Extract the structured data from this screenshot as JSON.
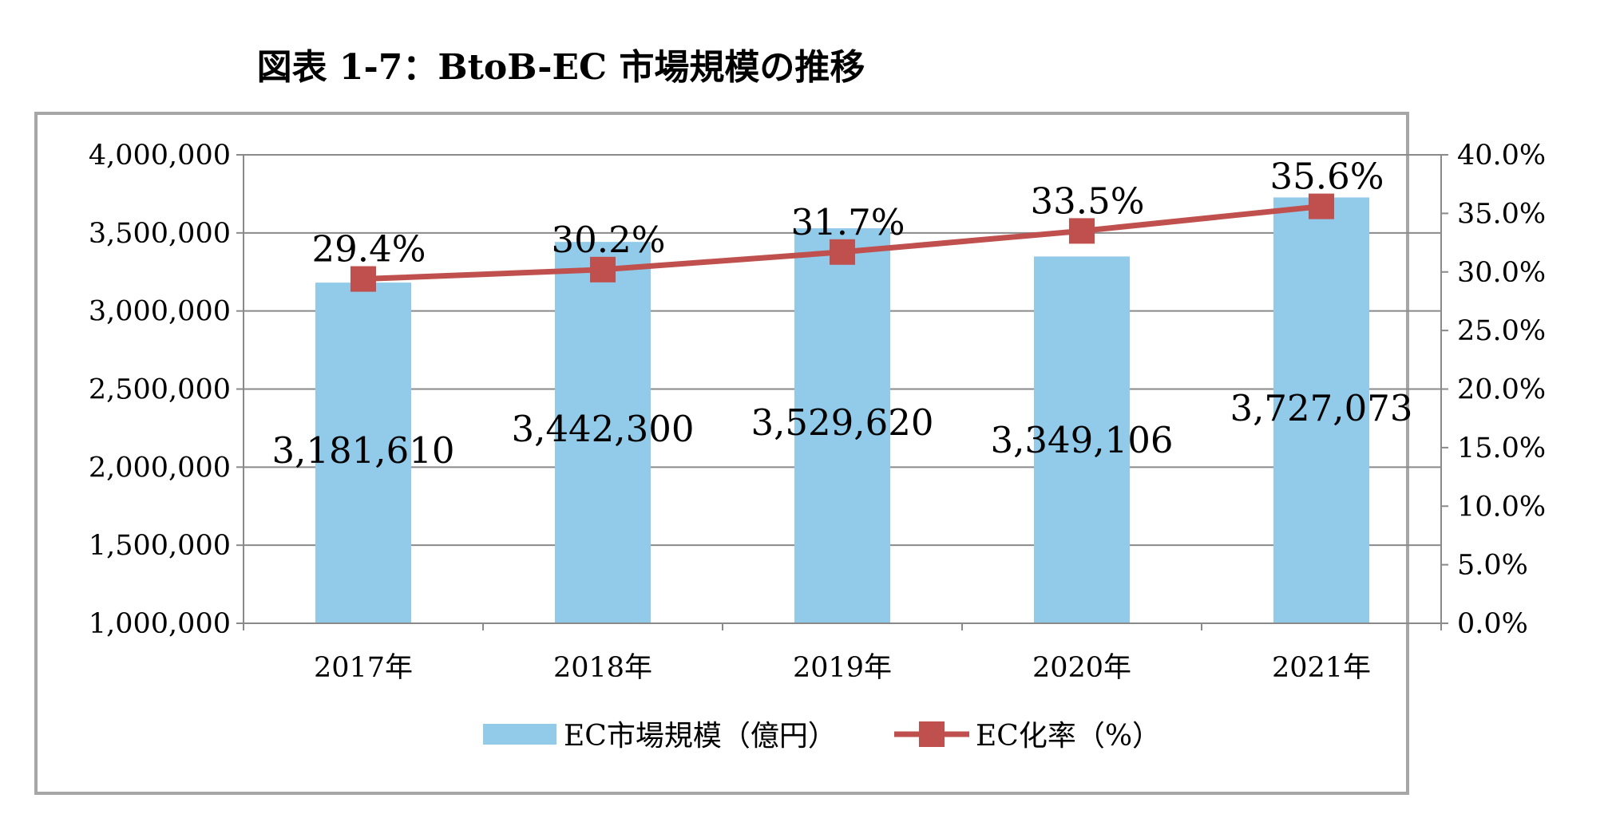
{
  "title": "図表 1-7：BtoB-EC 市場規模の推移",
  "chart_data": {
    "type": "bar",
    "categories": [
      "2017年",
      "2018年",
      "2019年",
      "2020年",
      "2021年"
    ],
    "series": [
      {
        "name": "EC市場規模（億円）",
        "type": "bar",
        "axis": "left",
        "values": [
          3181610,
          3442300,
          3529620,
          3349106,
          3727073
        ],
        "labels": [
          "3,181,610",
          "3,442,300",
          "3,529,620",
          "3,349,106",
          "3,727,073"
        ]
      },
      {
        "name": "EC化率（%）",
        "type": "line",
        "axis": "right",
        "values": [
          29.4,
          30.2,
          31.7,
          33.5,
          35.6
        ],
        "labels": [
          "29.4%",
          "30.2%",
          "31.7%",
          "33.5%",
          "35.6%"
        ]
      }
    ],
    "y_left": {
      "min": 1000000,
      "max": 4000000,
      "step": 500000,
      "ticks": [
        "1,000,000",
        "1,500,000",
        "2,000,000",
        "2,500,000",
        "3,000,000",
        "3,500,000",
        "4,000,000"
      ]
    },
    "y_right": {
      "min": 0,
      "max": 40,
      "step": 5,
      "ticks": [
        "0.0%",
        "5.0%",
        "10.0%",
        "15.0%",
        "20.0%",
        "25.0%",
        "30.0%",
        "35.0%",
        "40.0%"
      ]
    },
    "grid": "horizontal",
    "legend_position": "bottom",
    "colors": {
      "bar": "#92cbea",
      "line": "#c0504d",
      "grid": "#8a8a8a",
      "frame": "#a6a6a6"
    }
  }
}
